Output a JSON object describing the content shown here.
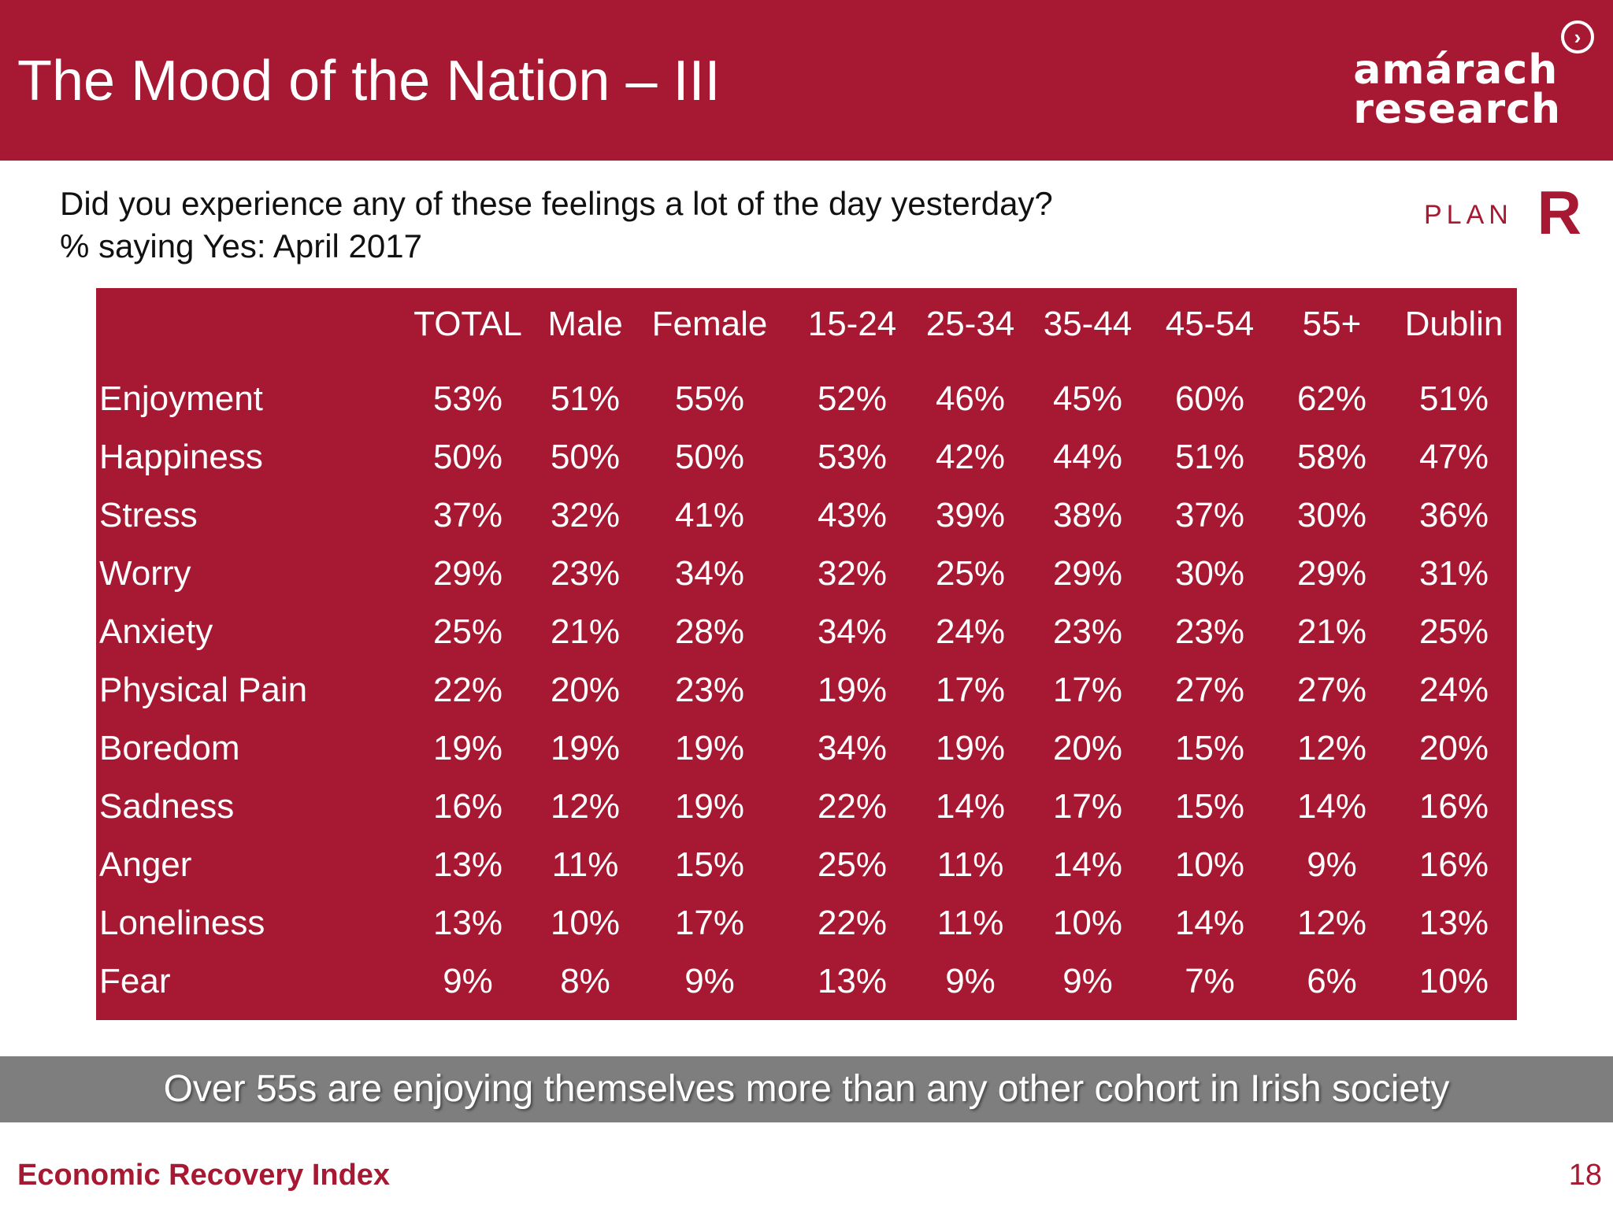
{
  "header": {
    "title": "The Mood of the Nation – III",
    "logo_line1": "amárach",
    "logo_line2": "research",
    "logo_icon": "chevron-right-circle-icon"
  },
  "question": {
    "line1": "Did you experience any of these feelings a lot of the day yesterday?",
    "line2": "% saying Yes: April 2017"
  },
  "plan_logo": {
    "text": "PLAN",
    "mark": "R"
  },
  "table": {
    "columns": [
      "TOTAL",
      "Male",
      "Female",
      "15-24",
      "25-34",
      "35-44",
      "45-54",
      "55+",
      "Dublin"
    ],
    "rows": [
      {
        "label": "Enjoyment",
        "values": [
          "53%",
          "51%",
          "55%",
          "52%",
          "46%",
          "45%",
          "60%",
          "62%",
          "51%"
        ]
      },
      {
        "label": "Happiness",
        "values": [
          "50%",
          "50%",
          "50%",
          "53%",
          "42%",
          "44%",
          "51%",
          "58%",
          "47%"
        ]
      },
      {
        "label": "Stress",
        "values": [
          "37%",
          "32%",
          "41%",
          "43%",
          "39%",
          "38%",
          "37%",
          "30%",
          "36%"
        ]
      },
      {
        "label": "Worry",
        "values": [
          "29%",
          "23%",
          "34%",
          "32%",
          "25%",
          "29%",
          "30%",
          "29%",
          "31%"
        ]
      },
      {
        "label": "Anxiety",
        "values": [
          "25%",
          "21%",
          "28%",
          "34%",
          "24%",
          "23%",
          "23%",
          "21%",
          "25%"
        ]
      },
      {
        "label": "Physical Pain",
        "values": [
          "22%",
          "20%",
          "23%",
          "19%",
          "17%",
          "17%",
          "27%",
          "27%",
          "24%"
        ]
      },
      {
        "label": "Boredom",
        "values": [
          "19%",
          "19%",
          "19%",
          "34%",
          "19%",
          "20%",
          "15%",
          "12%",
          "20%"
        ]
      },
      {
        "label": "Sadness",
        "values": [
          "16%",
          "12%",
          "19%",
          "22%",
          "14%",
          "17%",
          "15%",
          "14%",
          "16%"
        ]
      },
      {
        "label": "Anger",
        "values": [
          "13%",
          "11%",
          "15%",
          "25%",
          "11%",
          "14%",
          "10%",
          "9%",
          "16%"
        ]
      },
      {
        "label": "Loneliness",
        "values": [
          "13%",
          "10%",
          "17%",
          "22%",
          "11%",
          "10%",
          "14%",
          "12%",
          "13%"
        ]
      },
      {
        "label": "Fear",
        "values": [
          "9%",
          "8%",
          "9%",
          "13%",
          "9%",
          "9%",
          "7%",
          "6%",
          "10%"
        ]
      }
    ]
  },
  "banner": {
    "text": "Over 55s are enjoying themselves more than any other cohort in Irish society"
  },
  "footer": {
    "left": "Economic Recovery Index",
    "page_number": "18"
  },
  "colors": {
    "brand_red": "#a71932",
    "banner_grey": "#7e7e7e"
  }
}
